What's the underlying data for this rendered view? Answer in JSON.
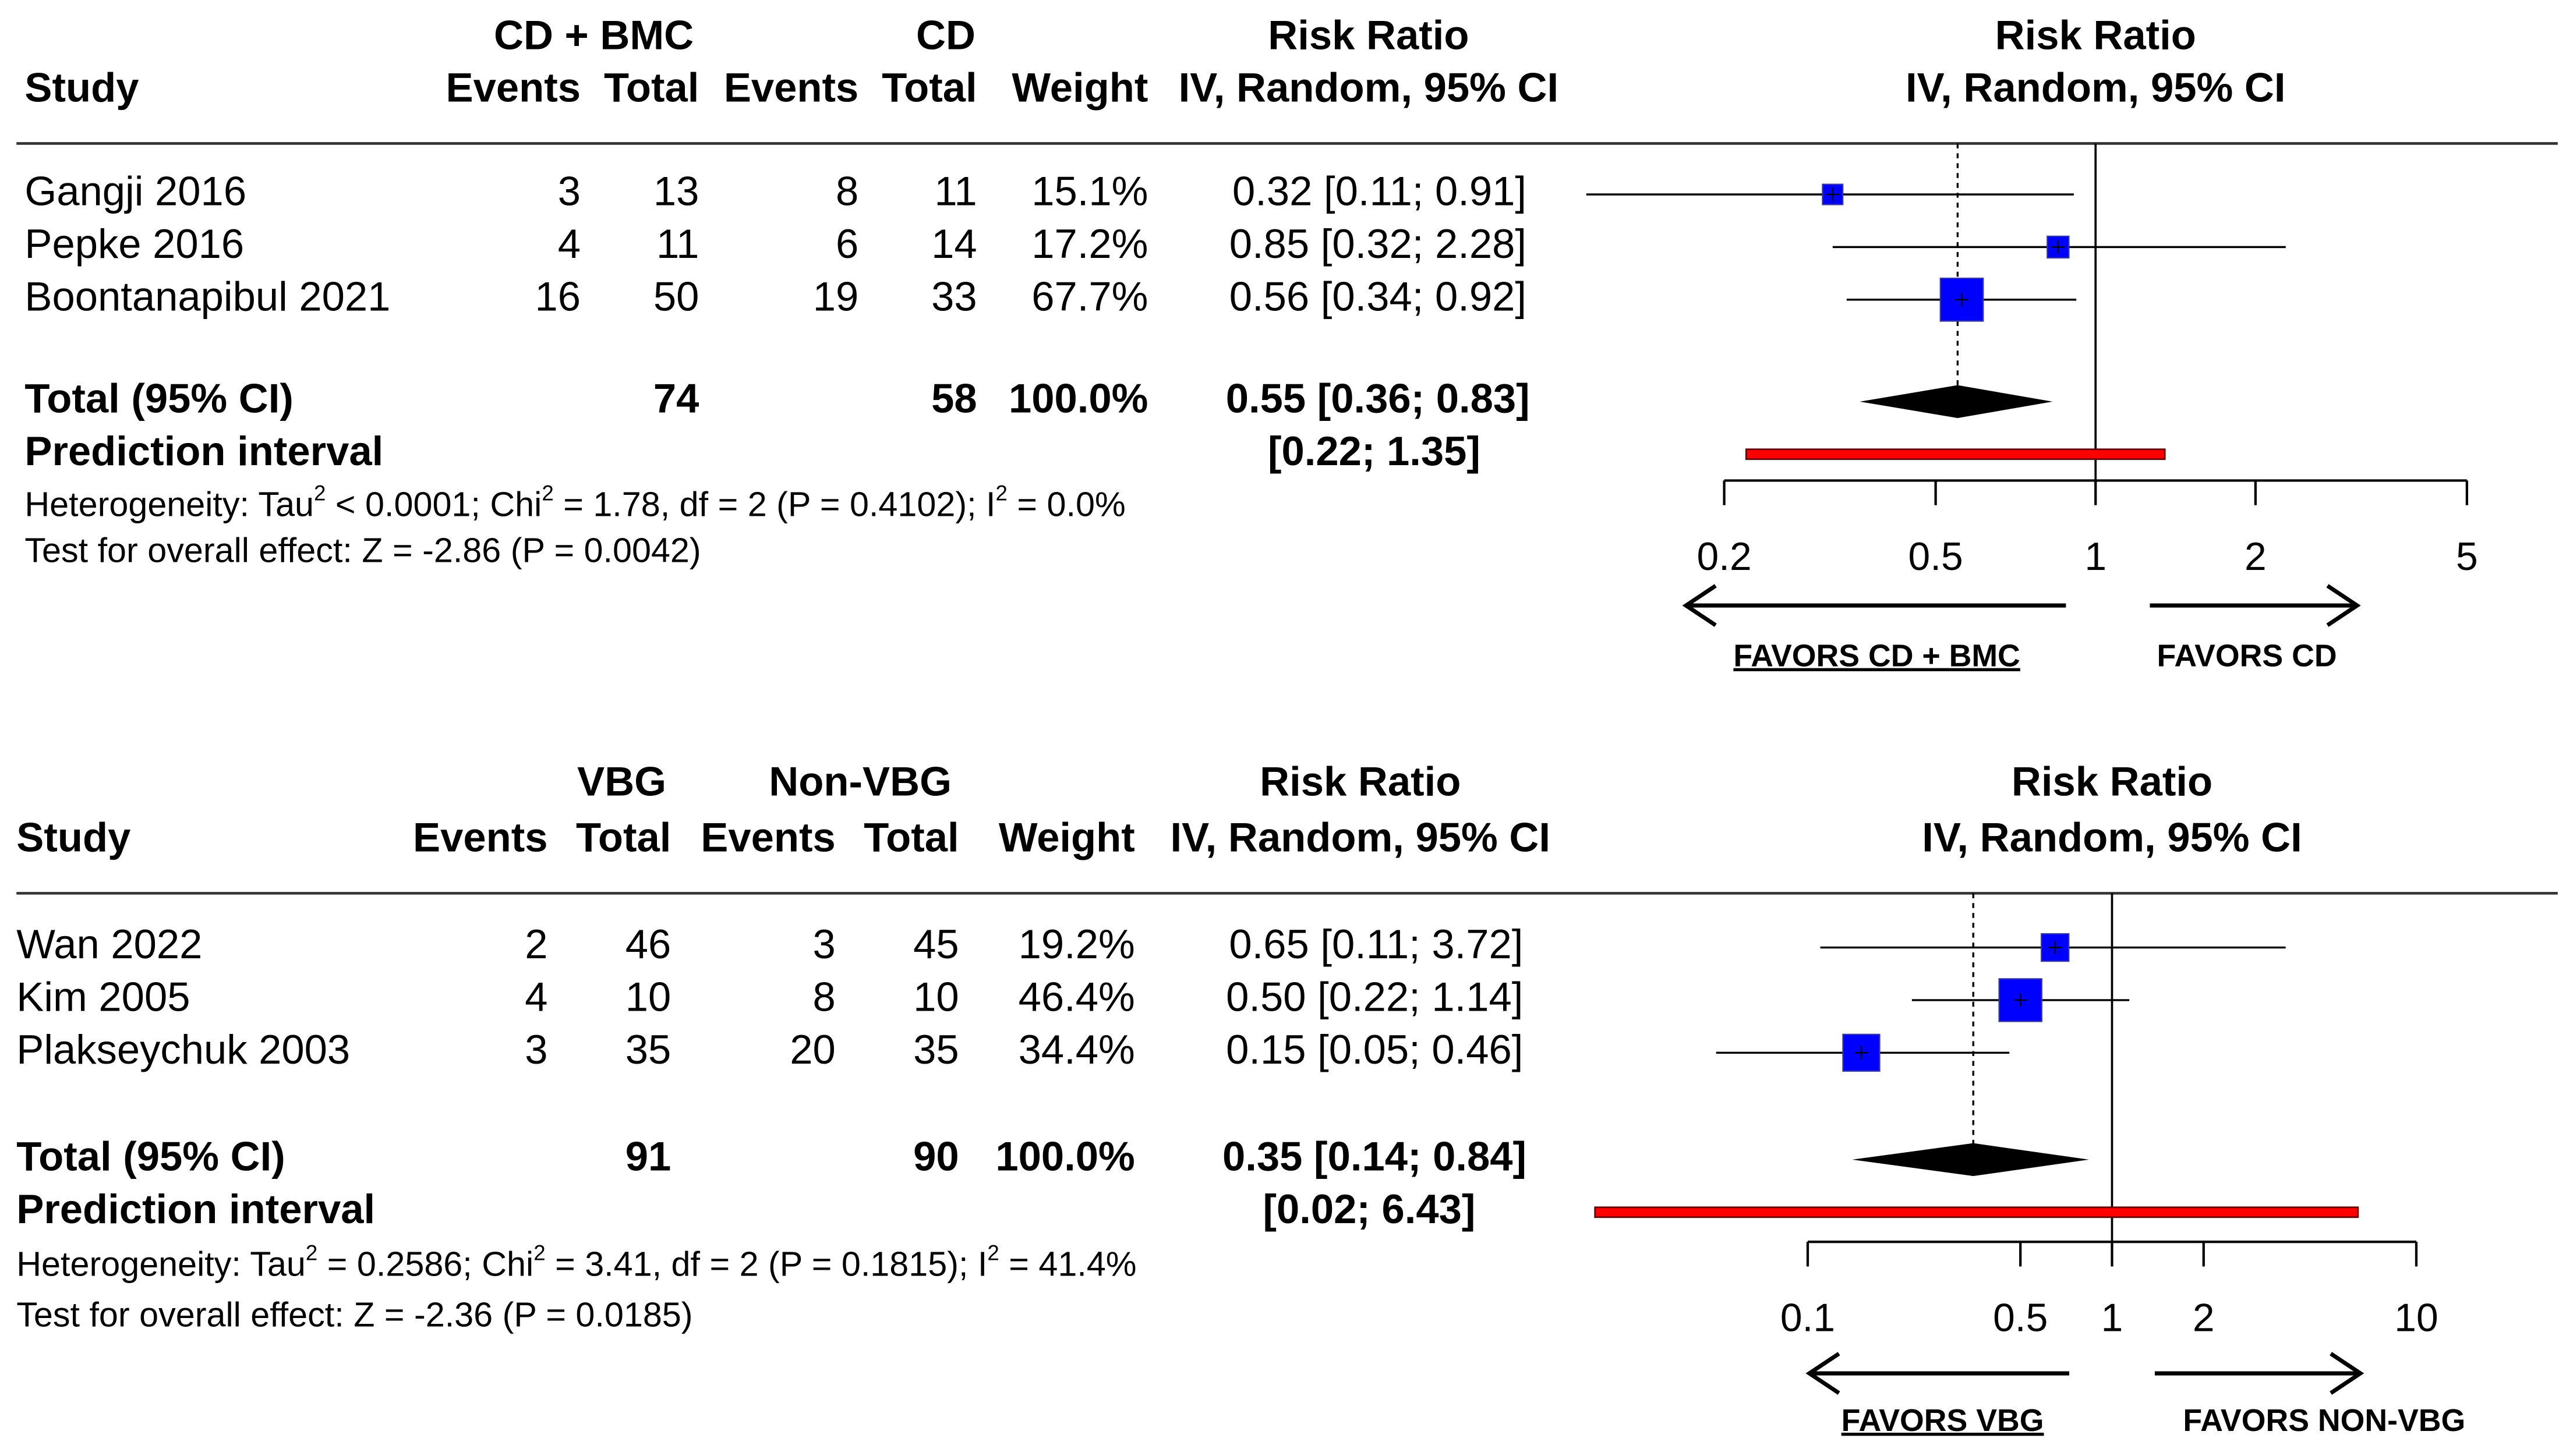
{
  "chart_data": [
    {
      "type": "forest",
      "headers": {
        "study": "Study",
        "group_exp": "CD + BMC",
        "group_ctrl": "CD",
        "events": "Events",
        "total": "Total",
        "weight": "Weight",
        "rr_title": "Risk Ratio",
        "rr_method": "IV, Random, 95% CI",
        "plot_title": "Risk Ratio",
        "plot_method": "IV, Random, 95% CI"
      },
      "studies": [
        {
          "study": "Gangji 2016",
          "events_exp": "3",
          "total_exp": "13",
          "events_ctrl": "8",
          "total_ctrl": "11",
          "weight_text": "15.1%",
          "weight": 15.1,
          "rr": 0.32,
          "lo": 0.11,
          "hi": 0.91,
          "ci_text": "0.32 [0.11; 0.91]"
        },
        {
          "study": "Pepke 2016",
          "events_exp": "4",
          "total_exp": "11",
          "events_ctrl": "6",
          "total_ctrl": "14",
          "weight_text": "17.2%",
          "weight": 17.2,
          "rr": 0.85,
          "lo": 0.32,
          "hi": 2.28,
          "ci_text": "0.85 [0.32; 2.28]"
        },
        {
          "study": "Boontanapibul 2021",
          "events_exp": "16",
          "total_exp": "50",
          "events_ctrl": "19",
          "total_ctrl": "33",
          "weight_text": "67.7%",
          "weight": 67.7,
          "rr": 0.56,
          "lo": 0.34,
          "hi": 0.92,
          "ci_text": "0.56 [0.34; 0.92]"
        }
      ],
      "total": {
        "label": "Total (95% CI)",
        "total_exp": "74",
        "total_ctrl": "58",
        "weight_text": "100.0%",
        "rr": 0.55,
        "lo": 0.36,
        "hi": 0.83,
        "ci_text": "0.55 [0.36; 0.83]"
      },
      "prediction": {
        "label": "Prediction interval",
        "lo": 0.22,
        "hi": 1.35,
        "ci_text": "[0.22; 1.35]"
      },
      "heterogeneity": [
        "Heterogeneity: Tau",
        "2",
        " < 0.0001; Chi",
        "2",
        " = 1.78, df = 2 (P = 0.4102); I",
        "2",
        " = 0.0%"
      ],
      "overall_effect": "Test for overall effect: Z = -2.86 (P = 0.0042)",
      "ticks": [
        0.2,
        0.5,
        1,
        2,
        5
      ],
      "tick_labels": [
        "0.2",
        "0.5",
        "1",
        "2",
        "5"
      ],
      "favors_left": "FAVORS CD + BMC",
      "favors_right": "FAVORS CD",
      "colors": {
        "square": "#0000ff",
        "prediction": "#ff0000",
        "diamond": "#000000"
      }
    },
    {
      "type": "forest",
      "headers": {
        "study": "Study",
        "group_exp": "VBG",
        "group_ctrl": "Non-VBG",
        "events": "Events",
        "total": "Total",
        "weight": "Weight",
        "rr_title": "Risk Ratio",
        "rr_method": "IV, Random, 95% CI",
        "plot_title": "Risk Ratio",
        "plot_method": "IV, Random, 95% CI"
      },
      "studies": [
        {
          "study": "Wan 2022",
          "events_exp": "2",
          "total_exp": "46",
          "events_ctrl": "3",
          "total_ctrl": "45",
          "weight_text": "19.2%",
          "weight": 19.2,
          "rr": 0.65,
          "lo": 0.11,
          "hi": 3.72,
          "ci_text": "0.65 [0.11; 3.72]"
        },
        {
          "study": "Kim 2005",
          "events_exp": "4",
          "total_exp": "10",
          "events_ctrl": "8",
          "total_ctrl": "10",
          "weight_text": "46.4%",
          "weight": 46.4,
          "rr": 0.5,
          "lo": 0.22,
          "hi": 1.14,
          "ci_text": "0.50 [0.22; 1.14]"
        },
        {
          "study": "Plakseychuk 2003",
          "events_exp": "3",
          "total_exp": "35",
          "events_ctrl": "20",
          "total_ctrl": "35",
          "weight_text": "34.4%",
          "weight": 34.4,
          "rr": 0.15,
          "lo": 0.05,
          "hi": 0.46,
          "ci_text": "0.15 [0.05; 0.46]"
        }
      ],
      "total": {
        "label": "Total (95% CI)",
        "total_exp": "91",
        "total_ctrl": "90",
        "weight_text": "100.0%",
        "rr": 0.35,
        "lo": 0.14,
        "hi": 0.84,
        "ci_text": "0.35 [0.14; 0.84]"
      },
      "prediction": {
        "label": "Prediction interval",
        "lo": 0.02,
        "hi": 6.43,
        "ci_text": "[0.02; 6.43]"
      },
      "heterogeneity": [
        "Heterogeneity: Tau",
        "2",
        " = 0.2586; Chi",
        "2",
        " = 3.41, df = 2 (P = 0.1815); I",
        "2",
        " = 41.4%"
      ],
      "overall_effect": "Test for overall effect: Z = -2.36 (P = 0.0185)",
      "ticks": [
        0.1,
        0.5,
        1,
        2,
        10
      ],
      "tick_labels": [
        "0.1",
        "0.5",
        "1",
        "2",
        "10"
      ],
      "favors_left": "FAVORS VBG",
      "favors_right": "FAVORS NON-VBG",
      "colors": {
        "square": "#0000ff",
        "prediction": "#ff0000",
        "diamond": "#000000"
      }
    }
  ]
}
